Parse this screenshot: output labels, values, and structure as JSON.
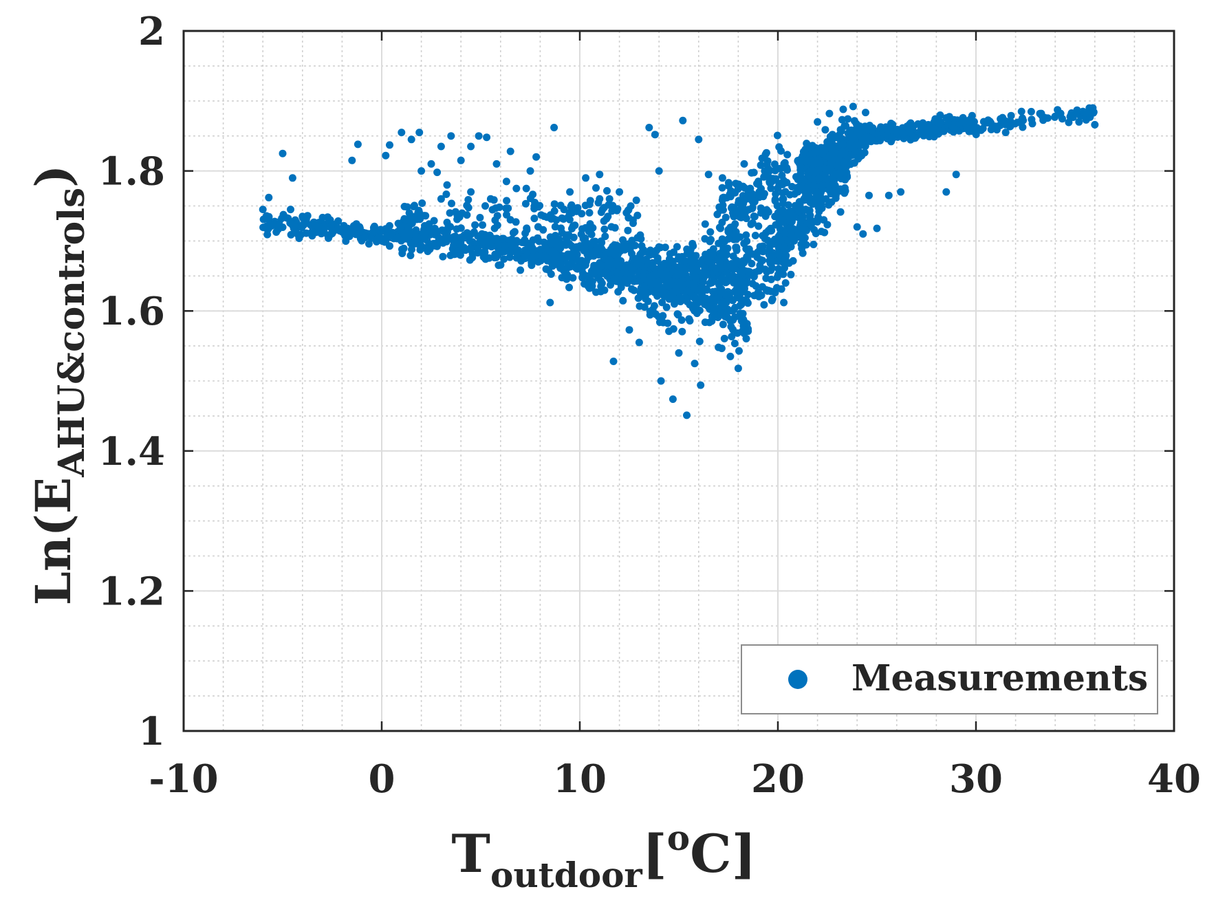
{
  "chart_data": {
    "type": "scatter",
    "title": "",
    "xlabel": {
      "main": "T",
      "sub": "outdoor",
      "bracket_open": "[",
      "sup": "o",
      "unit": "C",
      "bracket_close": "]"
    },
    "ylabel": {
      "main": "Ln(E",
      "sub": "AHU&controls",
      "close": ")"
    },
    "xlim": [
      -10,
      40
    ],
    "ylim": [
      1,
      2
    ],
    "x_ticks": [
      "-10",
      "0",
      "10",
      "20",
      "30",
      "40"
    ],
    "y_ticks": [
      "1",
      "1.2",
      "1.4",
      "1.6",
      "1.8",
      "2"
    ],
    "grid": true,
    "minor_grid": true,
    "legend": {
      "position": "bottom-right",
      "entries": [
        "Measurements"
      ]
    },
    "marker_color": "#0072BD",
    "series": [
      {
        "name": "Measurements",
        "note": "Representative points; remaining dense band generated from the bands below",
        "points": [
          [
            -6.0,
            1.745
          ],
          [
            -5.7,
            1.762
          ],
          [
            -5.0,
            1.825
          ],
          [
            -4.6,
            1.745
          ],
          [
            -4.5,
            1.79
          ],
          [
            -4.0,
            1.735
          ],
          [
            -3.2,
            1.72
          ],
          [
            -2.6,
            1.73
          ],
          [
            -1.5,
            1.815
          ],
          [
            -1.2,
            1.838
          ],
          [
            0.2,
            1.822
          ],
          [
            0.4,
            1.837
          ],
          [
            1.0,
            1.855
          ],
          [
            1.5,
            1.845
          ],
          [
            1.9,
            1.855
          ],
          [
            2.5,
            1.81
          ],
          [
            2.8,
            1.798
          ],
          [
            3.0,
            1.835
          ],
          [
            3.5,
            1.85
          ],
          [
            4.0,
            1.815
          ],
          [
            4.5,
            1.835
          ],
          [
            4.9,
            1.85
          ],
          [
            5.3,
            1.848
          ],
          [
            5.8,
            1.81
          ],
          [
            6.5,
            1.828
          ],
          [
            7.5,
            1.8
          ],
          [
            7.8,
            1.82
          ],
          [
            8.7,
            1.862
          ],
          [
            2.0,
            1.8
          ],
          [
            3.3,
            1.78
          ],
          [
            3.0,
            1.76
          ],
          [
            4.5,
            1.77
          ],
          [
            5.5,
            1.76
          ],
          [
            6.3,
            1.785
          ],
          [
            6.8,
            1.775
          ],
          [
            7.3,
            1.775
          ],
          [
            8.5,
            1.612
          ],
          [
            9.2,
            1.745
          ],
          [
            9.5,
            1.77
          ],
          [
            10.3,
            1.79
          ],
          [
            11.0,
            1.795
          ],
          [
            11.5,
            1.76
          ],
          [
            12.0,
            1.77
          ],
          [
            11.7,
            1.528
          ],
          [
            12.5,
            1.573
          ],
          [
            13.0,
            1.555
          ],
          [
            13.5,
            1.862
          ],
          [
            13.8,
            1.852
          ],
          [
            14.0,
            1.8
          ],
          [
            14.1,
            1.5
          ],
          [
            14.5,
            1.571
          ],
          [
            14.7,
            1.474
          ],
          [
            15.2,
            1.872
          ],
          [
            15.0,
            1.54
          ],
          [
            15.4,
            1.451
          ],
          [
            15.8,
            1.525
          ],
          [
            16.1,
            1.494
          ],
          [
            16.0,
            1.845
          ],
          [
            16.5,
            1.795
          ],
          [
            17.2,
            1.79
          ],
          [
            17.0,
            1.548
          ],
          [
            17.6,
            1.535
          ],
          [
            18.0,
            1.518
          ],
          [
            18.3,
            1.81
          ],
          [
            18.6,
            1.775
          ],
          [
            19.2,
            1.818
          ],
          [
            19.7,
            1.785
          ],
          [
            20.3,
            1.612
          ],
          [
            20.8,
            1.735
          ],
          [
            21.3,
            1.7
          ],
          [
            21.8,
            1.695
          ],
          [
            22.0,
            1.87
          ],
          [
            22.6,
            1.882
          ],
          [
            23.3,
            1.888
          ],
          [
            23.8,
            1.892
          ],
          [
            24.0,
            1.72
          ],
          [
            24.3,
            1.71
          ],
          [
            24.6,
            1.765
          ],
          [
            25.0,
            1.718
          ],
          [
            25.6,
            1.765
          ],
          [
            26.2,
            1.77
          ],
          [
            28.5,
            1.77
          ],
          [
            29.0,
            1.795
          ],
          [
            32.3,
            1.885
          ],
          [
            33.3,
            1.882
          ],
          [
            34.0,
            1.878
          ],
          [
            34.8,
            1.88
          ],
          [
            35.4,
            1.885
          ],
          [
            35.9,
            1.89
          ],
          [
            36.0,
            1.866
          ],
          [
            35.2,
            1.87
          ],
          [
            31.5,
            1.855
          ]
        ],
        "bands": [
          {
            "x": [
              -6,
              1
            ],
            "y_at_start": 1.725,
            "y_at_end": 1.708,
            "spread": 0.012,
            "count": 170
          },
          {
            "x": [
              1,
              9
            ],
            "y_at_start": 1.708,
            "y_at_end": 1.682,
            "spread": 0.02,
            "count": 320
          },
          {
            "x": [
              9,
              15.5
            ],
            "y_at_start": 1.68,
            "y_at_end": 1.648,
            "spread": 0.035,
            "count": 420
          },
          {
            "x": [
              13,
              18.5
            ],
            "y_at_start": 1.64,
            "y_at_end": 1.6,
            "spread": 0.05,
            "count": 190
          },
          {
            "x": [
              15.5,
              20.5
            ],
            "y_at_start": 1.65,
            "y_at_end": 1.68,
            "spread": 0.045,
            "count": 300
          },
          {
            "x": [
              17,
              20.5
            ],
            "y_at_start": 1.72,
            "y_at_end": 1.795,
            "spread": 0.045,
            "count": 150
          },
          {
            "x": [
              20,
              23.5
            ],
            "y_at_start": 1.7,
            "y_at_end": 1.82,
            "spread": 0.045,
            "count": 330
          },
          {
            "x": [
              21,
              24.5
            ],
            "y_at_start": 1.8,
            "y_at_end": 1.85,
            "spread": 0.025,
            "count": 230
          },
          {
            "x": [
              23.5,
              30
            ],
            "y_at_start": 1.848,
            "y_at_end": 1.868,
            "spread": 0.01,
            "count": 320
          },
          {
            "x": [
              30,
              36
            ],
            "y_at_start": 1.862,
            "y_at_end": 1.885,
            "spread": 0.008,
            "count": 70
          },
          {
            "x": [
              1,
              13
            ],
            "y_at_start": 1.735,
            "y_at_end": 1.745,
            "spread": 0.02,
            "count": 110
          }
        ]
      }
    ]
  }
}
